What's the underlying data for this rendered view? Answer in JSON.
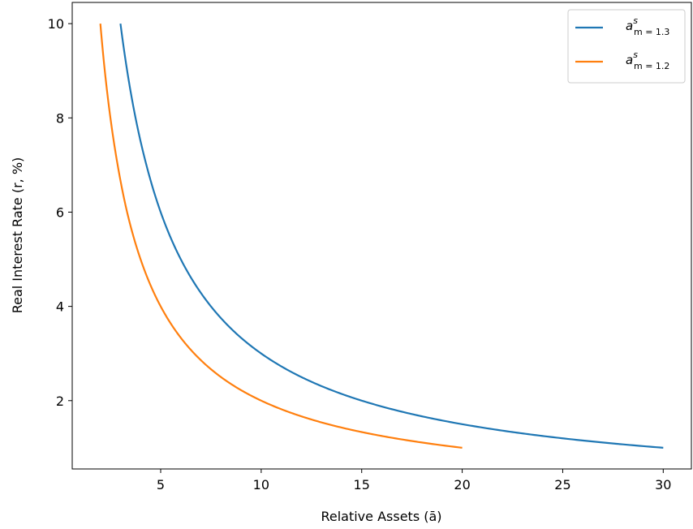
{
  "chart_data": {
    "type": "line",
    "xlabel": "Relative Assets (ā)",
    "ylabel": "Real Interest Rate (r, %)",
    "xlim": [
      0.6,
      31.4
    ],
    "ylim": [
      0.55,
      10.45
    ],
    "xticks": [
      5,
      10,
      15,
      20,
      25,
      30
    ],
    "yticks": [
      2,
      4,
      6,
      8,
      10
    ],
    "grid": false,
    "legend_position": "upper right",
    "series": [
      {
        "name_base": "a",
        "name_sup": "s",
        "name_sub": "m = 1.3",
        "color": "#1f77b4",
        "x": [
          3,
          3.3,
          3.75,
          4.29,
          5,
          6,
          7.5,
          8.57,
          10,
          12,
          15,
          20,
          25,
          30
        ],
        "y": [
          10,
          9.09,
          8,
          7,
          6,
          5,
          4,
          3.5,
          3,
          2.5,
          2,
          1.5,
          1.2,
          1
        ]
      },
      {
        "name_base": "a",
        "name_sup": "s",
        "name_sub": "m = 1.2",
        "color": "#ff7f0e",
        "x": [
          2,
          2.22,
          2.5,
          2.86,
          3.33,
          4,
          5,
          6.67,
          8,
          10,
          13.33,
          16,
          20
        ],
        "y": [
          10,
          9,
          8,
          7,
          6,
          5,
          4,
          3,
          2.5,
          2,
          1.5,
          1.25,
          1
        ]
      }
    ]
  }
}
